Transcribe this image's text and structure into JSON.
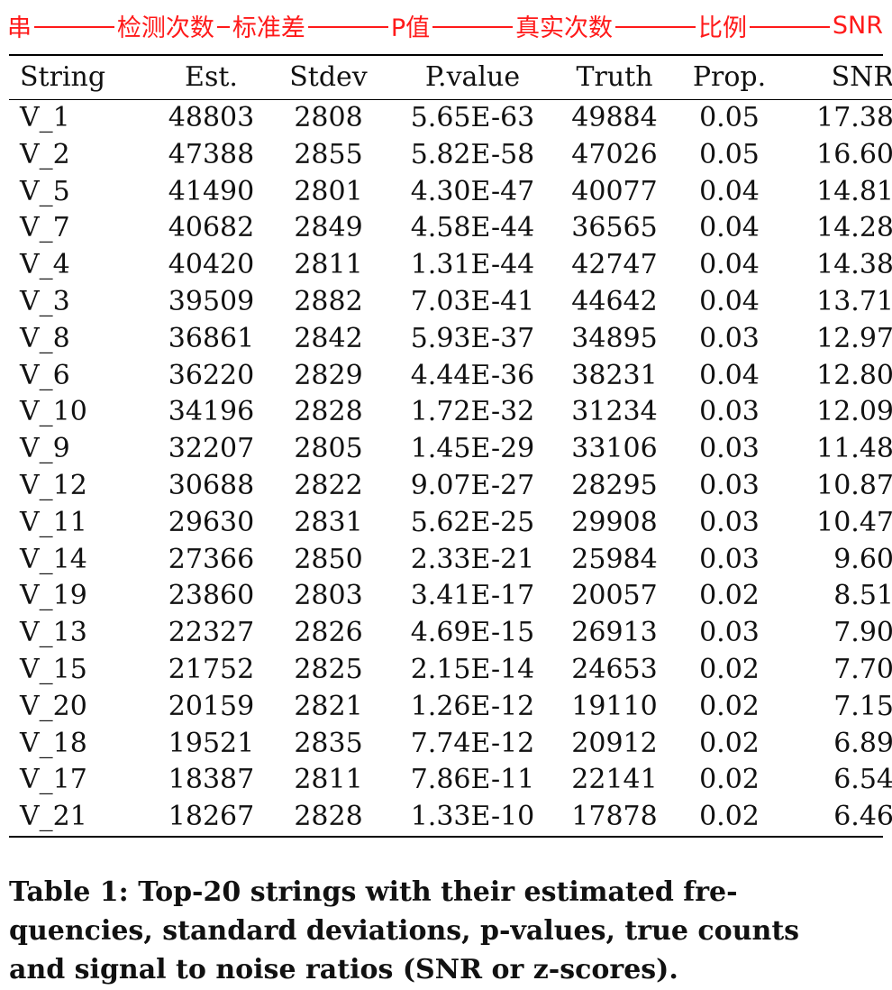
{
  "annotation": {
    "labels": [
      "串",
      "检测次数",
      "标准差",
      "P值",
      "真实次数",
      "比例",
      "SNR"
    ]
  },
  "table": {
    "headers": [
      "String",
      "Est.",
      "Stdev",
      "P.value",
      "Truth",
      "Prop.",
      "SNR"
    ],
    "rows": [
      [
        "V_1",
        "48803",
        "2808",
        "5.65E-63",
        "49884",
        "0.05",
        "17.38"
      ],
      [
        "V_2",
        "47388",
        "2855",
        "5.82E-58",
        "47026",
        "0.05",
        "16.60"
      ],
      [
        "V_5",
        "41490",
        "2801",
        "4.30E-47",
        "40077",
        "0.04",
        "14.81"
      ],
      [
        "V_7",
        "40682",
        "2849",
        "4.58E-44",
        "36565",
        "0.04",
        "14.28"
      ],
      [
        "V_4",
        "40420",
        "2811",
        "1.31E-44",
        "42747",
        "0.04",
        "14.38"
      ],
      [
        "V_3",
        "39509",
        "2882",
        "7.03E-41",
        "44642",
        "0.04",
        "13.71"
      ],
      [
        "V_8",
        "36861",
        "2842",
        "5.93E-37",
        "34895",
        "0.03",
        "12.97"
      ],
      [
        "V_6",
        "36220",
        "2829",
        "4.44E-36",
        "38231",
        "0.04",
        "12.80"
      ],
      [
        "V_10",
        "34196",
        "2828",
        "1.72E-32",
        "31234",
        "0.03",
        "12.09"
      ],
      [
        "V_9",
        "32207",
        "2805",
        "1.45E-29",
        "33106",
        "0.03",
        "11.48"
      ],
      [
        "V_12",
        "30688",
        "2822",
        "9.07E-27",
        "28295",
        "0.03",
        "10.87"
      ],
      [
        "V_11",
        "29630",
        "2831",
        "5.62E-25",
        "29908",
        "0.03",
        "10.47"
      ],
      [
        "V_14",
        "27366",
        "2850",
        "2.33E-21",
        "25984",
        "0.03",
        "9.60"
      ],
      [
        "V_19",
        "23860",
        "2803",
        "3.41E-17",
        "20057",
        "0.02",
        "8.51"
      ],
      [
        "V_13",
        "22327",
        "2826",
        "4.69E-15",
        "26913",
        "0.03",
        "7.90"
      ],
      [
        "V_15",
        "21752",
        "2825",
        "2.15E-14",
        "24653",
        "0.02",
        "7.70"
      ],
      [
        "V_20",
        "20159",
        "2821",
        "1.26E-12",
        "19110",
        "0.02",
        "7.15"
      ],
      [
        "V_18",
        "19521",
        "2835",
        "7.74E-12",
        "20912",
        "0.02",
        "6.89"
      ],
      [
        "V_17",
        "18387",
        "2811",
        "7.86E-11",
        "22141",
        "0.02",
        "6.54"
      ],
      [
        "V_21",
        "18267",
        "2828",
        "1.33E-10",
        "17878",
        "0.02",
        "6.46"
      ]
    ]
  },
  "caption": {
    "lines": [
      "Table 1:  Top-20 strings with their estimated fre-",
      "quencies, standard deviations, p-values, true counts",
      "and signal to noise ratios (SNR or z-scores)."
    ]
  }
}
